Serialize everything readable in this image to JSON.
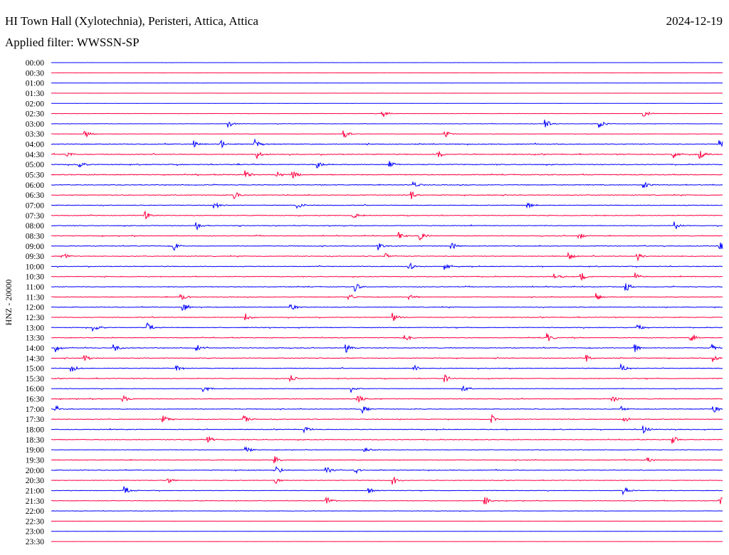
{
  "chart_data": {
    "type": "line",
    "title": "HI Town Hall (Xylotechnia), Peristeri, Attica, Attica",
    "date": "2024-12-19",
    "subtitle": "Applied filter: WWSSN-SP",
    "ylabel": "HNZ - 20000",
    "minutes_per_line": 30,
    "colors": [
      "#0000ff",
      "#ff0040"
    ],
    "rows": [
      {
        "label": "00:00",
        "noise": 0.05,
        "events": []
      },
      {
        "label": "00:30",
        "noise": 0.05,
        "events": []
      },
      {
        "label": "01:00",
        "noise": 0.05,
        "events": []
      },
      {
        "label": "01:30",
        "noise": 0.05,
        "events": []
      },
      {
        "label": "02:00",
        "noise": 0.05,
        "events": []
      },
      {
        "label": "02:30",
        "noise": 0.12,
        "events": [
          14.8,
          26.5
        ]
      },
      {
        "label": "03:00",
        "noise": 0.15,
        "events": [
          7.9,
          22.1,
          24.5
        ]
      },
      {
        "label": "03:30",
        "noise": 0.15,
        "events": [
          1.5,
          13.1,
          17.6
        ]
      },
      {
        "label": "04:00",
        "noise": 0.3,
        "events": [
          6.4,
          7.6,
          9.1,
          29.9
        ]
      },
      {
        "label": "04:30",
        "noise": 0.3,
        "events": [
          0.7,
          9.2,
          17.3,
          27.8,
          29.0
        ]
      },
      {
        "label": "05:00",
        "noise": 0.3,
        "events": [
          1.2,
          11.9,
          15.1
        ]
      },
      {
        "label": "05:30",
        "noise": 0.3,
        "events": [
          8.7,
          10.1,
          10.8
        ]
      },
      {
        "label": "06:00",
        "noise": 0.25,
        "events": [
          16.2,
          26.5
        ]
      },
      {
        "label": "06:30",
        "noise": 0.25,
        "events": [
          8.2,
          16.1
        ]
      },
      {
        "label": "07:00",
        "noise": 0.25,
        "events": [
          7.3,
          11.0,
          21.3
        ]
      },
      {
        "label": "07:30",
        "noise": 0.25,
        "events": [
          4.2,
          13.5
        ]
      },
      {
        "label": "08:00",
        "noise": 0.25,
        "events": [
          6.5,
          27.9
        ]
      },
      {
        "label": "08:30",
        "noise": 0.25,
        "events": [
          15.5,
          16.5,
          23.6
        ]
      },
      {
        "label": "09:00",
        "noise": 0.25,
        "events": [
          5.5,
          14.6,
          17.9,
          29.9
        ]
      },
      {
        "label": "09:30",
        "noise": 0.25,
        "events": [
          0.5,
          14.9,
          23.1,
          26.2
        ]
      },
      {
        "label": "10:00",
        "noise": 0.25,
        "events": [
          16.0,
          17.6
        ]
      },
      {
        "label": "10:30",
        "noise": 0.25,
        "events": [
          22.5,
          23.7,
          26.1
        ]
      },
      {
        "label": "11:00",
        "noise": 0.25,
        "events": [
          13.6,
          25.7
        ]
      },
      {
        "label": "11:30",
        "noise": 0.25,
        "events": [
          5.8,
          13.3,
          16.0,
          24.4
        ]
      },
      {
        "label": "12:00",
        "noise": 0.25,
        "events": [
          5.9,
          10.7
        ]
      },
      {
        "label": "12:30",
        "noise": 0.25,
        "events": [
          8.7,
          15.3
        ]
      },
      {
        "label": "13:00",
        "noise": 0.25,
        "events": [
          1.9,
          4.3,
          26.2
        ]
      },
      {
        "label": "13:30",
        "noise": 0.25,
        "events": [
          15.8,
          22.2,
          28.6
        ]
      },
      {
        "label": "14:00",
        "noise": 0.25,
        "events": [
          0.2,
          2.8,
          6.5,
          13.2,
          26.1,
          29.5
        ]
      },
      {
        "label": "14:30",
        "noise": 0.25,
        "events": [
          1.5,
          23.9,
          29.6
        ]
      },
      {
        "label": "15:00",
        "noise": 0.25,
        "events": [
          0.9,
          5.6,
          16.2,
          25.5
        ]
      },
      {
        "label": "15:30",
        "noise": 0.25,
        "events": [
          10.7,
          17.6
        ]
      },
      {
        "label": "16:00",
        "noise": 0.2,
        "events": [
          6.8,
          13.4,
          18.4
        ]
      },
      {
        "label": "16:30",
        "noise": 0.25,
        "events": [
          3.2,
          13.7,
          25.1
        ]
      },
      {
        "label": "17:00",
        "noise": 0.25,
        "events": [
          0.2,
          13.9,
          25.5,
          29.6
        ]
      },
      {
        "label": "17:30",
        "noise": 0.25,
        "events": [
          5.0,
          8.6,
          19.7,
          25.6
        ]
      },
      {
        "label": "18:00",
        "noise": 0.25,
        "events": [
          11.3,
          26.5
        ]
      },
      {
        "label": "18:30",
        "noise": 0.25,
        "events": [
          7.0,
          27.8
        ]
      },
      {
        "label": "19:00",
        "noise": 0.2,
        "events": [
          8.7,
          14.0
        ]
      },
      {
        "label": "19:30",
        "noise": 0.25,
        "events": [
          10.0,
          26.6
        ]
      },
      {
        "label": "20:00",
        "noise": 0.25,
        "events": [
          10.1,
          12.3,
          13.6
        ]
      },
      {
        "label": "20:30",
        "noise": 0.2,
        "events": [
          5.2,
          10.0,
          15.3
        ]
      },
      {
        "label": "21:00",
        "noise": 0.2,
        "events": [
          3.3,
          14.2,
          25.6
        ]
      },
      {
        "label": "21:30",
        "noise": 0.2,
        "events": [
          12.3,
          19.4,
          29.9
        ]
      },
      {
        "label": "22:00",
        "noise": 0.15,
        "events": []
      },
      {
        "label": "22:30",
        "noise": 0.05,
        "events": []
      },
      {
        "label": "23:00",
        "noise": 0.05,
        "events": []
      },
      {
        "label": "23:30",
        "noise": 0.05,
        "events": []
      }
    ]
  }
}
